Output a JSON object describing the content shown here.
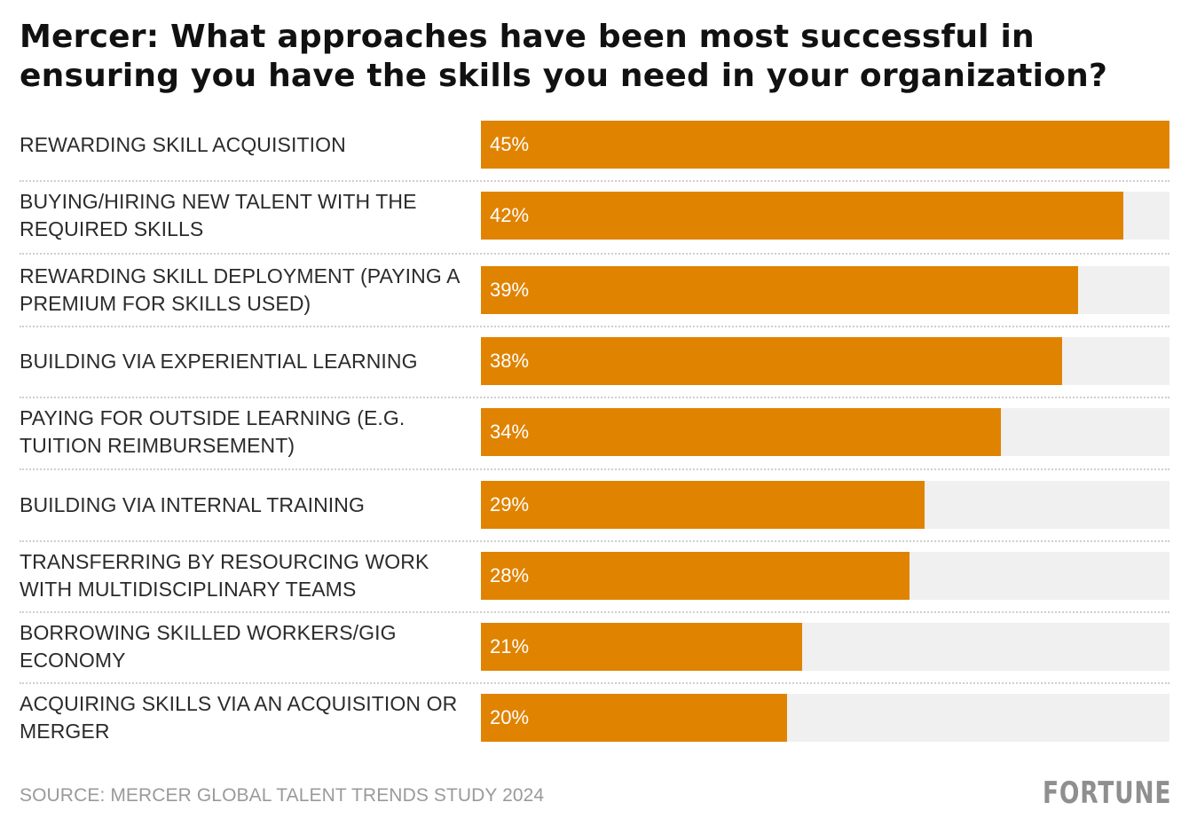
{
  "title": "Mercer: What approaches have been most successful in ensuring you have the skills you need in your organization?",
  "source": "SOURCE: MERCER GLOBAL TALENT TRENDS STUDY 2024",
  "brand": "FORTUNE",
  "colors": {
    "bar": "#e08300",
    "track": "#f0f0f0",
    "value_text": "#ffffff",
    "source_text": "#9a9a9a",
    "brand_text": "#8f8f8f"
  },
  "chart_data": {
    "type": "bar",
    "orientation": "horizontal",
    "title": "Mercer: What approaches have been most successful in ensuring you have the skills you need in your organization?",
    "categories": [
      "REWARDING SKILL ACQUISITION",
      "BUYING/HIRING NEW TALENT WITH THE REQUIRED SKILLS",
      "REWARDING SKILL DEPLOYMENT (PAYING A PREMIUM FOR SKILLS USED)",
      "BUILDING VIA EXPERIENTIAL LEARNING",
      "PAYING FOR OUTSIDE LEARNING (E.G. TUITION REIMBURSEMENT)",
      "BUILDING VIA INTERNAL TRAINING",
      "TRANSFERRING BY RESOURCING WORK WITH MULTIDISCIPLINARY TEAMS",
      "BORROWING SKILLED WORKERS/GIG ECONOMY",
      "ACQUIRING SKILLS VIA AN ACQUISITION OR MERGER"
    ],
    "values": [
      45,
      42,
      39,
      38,
      34,
      29,
      28,
      21,
      20
    ],
    "value_labels": [
      "45%",
      "42%",
      "39%",
      "38%",
      "34%",
      "29%",
      "28%",
      "21%",
      "20%"
    ],
    "unit": "%",
    "xlim": [
      0,
      45
    ],
    "grid": false,
    "legend": "none"
  }
}
